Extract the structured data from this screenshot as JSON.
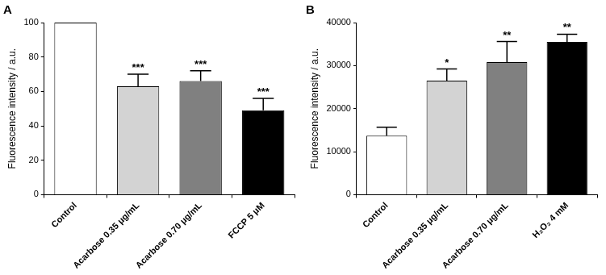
{
  "chart_data": [
    {
      "type": "bar",
      "title": "A",
      "y_label": "Fluorescence intensity / a.u.",
      "categories": [
        "Control",
        "Acarbose 0.35 μg/mL",
        "Acarbose 0.70 μg/mL",
        "FCCP 5 μM"
      ],
      "values": [
        100,
        63,
        66,
        49
      ],
      "errors": [
        null,
        7,
        6,
        7
      ],
      "significance": [
        null,
        "***",
        "***",
        "***"
      ],
      "colors": [
        "#ffffff",
        "#d3d3d3",
        "#808080",
        "#000000"
      ],
      "ylim": [
        0,
        100
      ],
      "yticks": [
        0,
        20,
        40,
        60,
        80,
        100
      ],
      "grid": false
    },
    {
      "type": "bar",
      "title": "B",
      "y_label": "Fluorescence intensity / a.u.",
      "categories": [
        "Control",
        "Acarbose 0.35 μg/mL",
        "Acarbose 0.70 μg/mL",
        "H₂O₂ 4 mM"
      ],
      "values": [
        13700,
        26500,
        30800,
        35500
      ],
      "errors": [
        2000,
        2700,
        4800,
        1800
      ],
      "significance": [
        null,
        "*",
        "**",
        "**"
      ],
      "colors": [
        "#ffffff",
        "#d3d3d3",
        "#808080",
        "#000000"
      ],
      "ylim": [
        0,
        40000
      ],
      "yticks": [
        0,
        10000,
        20000,
        30000,
        40000
      ],
      "grid": false
    }
  ]
}
